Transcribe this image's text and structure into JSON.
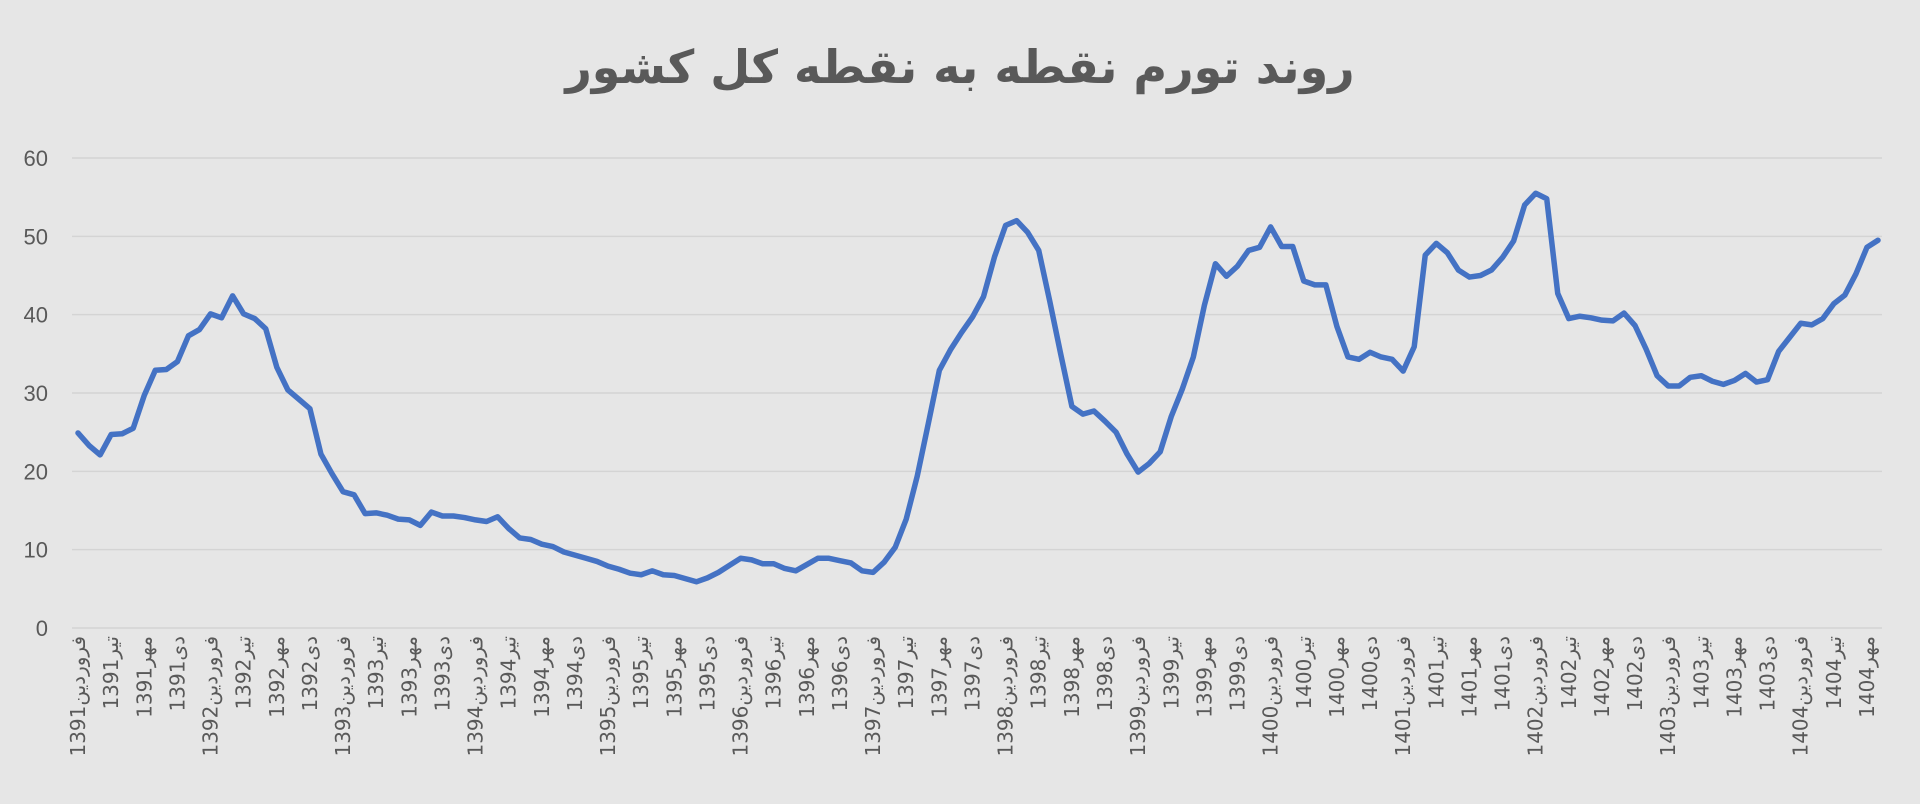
{
  "title": "روند تورم نقطه به نقطه کل کشور",
  "chart_data": {
    "type": "line",
    "title": "روند تورم نقطه به نقطه کل کشور",
    "xlabel": "",
    "ylabel": "",
    "ylim": [
      0,
      60
    ],
    "yticks": [
      0,
      10,
      20,
      30,
      40,
      50,
      60
    ],
    "grid": true,
    "legend": "none",
    "series_color": "#4472c4",
    "x_tick_labels": [
      "فروردین1391",
      "تیر1391",
      "مهر1391",
      "دی1391",
      "فروردین1392",
      "تیر1392",
      "مهر1392",
      "دی1392",
      "فروردین1393",
      "تیر1393",
      "مهر1393",
      "دی1393",
      "فروردین1394",
      "تیر1394",
      "مهر1394",
      "دی1394",
      "فروردین1395",
      "تیر1395",
      "مهر1395",
      "دی1395",
      "فروردین1396",
      "تیر1396",
      "مهر1396",
      "دی1396",
      "فروردین1397",
      "تیر1397",
      "مهر1397",
      "دی1397",
      "فروردین1398",
      "تیر1398",
      "مهر1398",
      "دی1398",
      "فروردین1399",
      "تیر1399",
      "مهر1399",
      "دی1399",
      "فروردین1400",
      "تیر1400",
      "مهر1400",
      "دی1400",
      "فروردین1401",
      "تیر1401",
      "مهر1401",
      "دی1401",
      "فروردین1402",
      "تیر1402",
      "مهر1402",
      "دی1402",
      "فروردین1403",
      "تیر1403",
      "مهر1403",
      "دی1403",
      "فروردین1404",
      "تیر1404",
      "مهر1404"
    ],
    "values": [
      24.9,
      23.3,
      22.1,
      24.7,
      24.8,
      25.5,
      29.7,
      32.9,
      33.0,
      34.0,
      37.3,
      38.1,
      40.1,
      39.6,
      42.4,
      40.1,
      39.5,
      38.2,
      33.3,
      30.4,
      29.2,
      28.0,
      22.2,
      19.7,
      17.4,
      17.0,
      14.6,
      14.7,
      14.4,
      13.9,
      13.8,
      13.1,
      14.8,
      14.3,
      14.3,
      14.1,
      13.8,
      13.6,
      14.2,
      12.7,
      11.5,
      11.3,
      10.7,
      10.4,
      9.7,
      9.3,
      8.9,
      8.5,
      7.9,
      7.5,
      7.0,
      6.8,
      7.3,
      6.8,
      6.7,
      6.3,
      5.9,
      6.4,
      7.1,
      8.0,
      8.9,
      8.7,
      8.2,
      8.2,
      7.6,
      7.3,
      8.1,
      8.9,
      8.9,
      8.6,
      8.3,
      7.3,
      7.1,
      8.4,
      10.3,
      13.9,
      19.4,
      26.1,
      32.9,
      35.5,
      37.7,
      39.7,
      42.3,
      47.4,
      51.4,
      52.0,
      50.5,
      48.2,
      41.7,
      34.9,
      28.3,
      27.3,
      27.7,
      26.4,
      25.0,
      22.2,
      19.9,
      21.0,
      22.5,
      27.0,
      30.5,
      34.6,
      41.2,
      46.5,
      44.9,
      46.2,
      48.2,
      48.6,
      51.2,
      48.7,
      48.7,
      44.3,
      43.8,
      43.8,
      38.5,
      34.6,
      34.3,
      35.2,
      34.6,
      34.3,
      32.8,
      35.9,
      47.6,
      49.1,
      47.9,
      45.7,
      44.8,
      45.0,
      45.7,
      47.3,
      49.4,
      54.0,
      55.5,
      54.8,
      42.7,
      39.5,
      39.8,
      39.6,
      39.3,
      39.2,
      40.2,
      38.6,
      35.6,
      32.2,
      30.9,
      30.9,
      32.0,
      32.2,
      31.5,
      31.1,
      31.6,
      32.5,
      31.4,
      31.7,
      35.3,
      37.1,
      38.9,
      38.7,
      39.5,
      41.4,
      42.5,
      45.2,
      48.6,
      49.5
    ]
  }
}
